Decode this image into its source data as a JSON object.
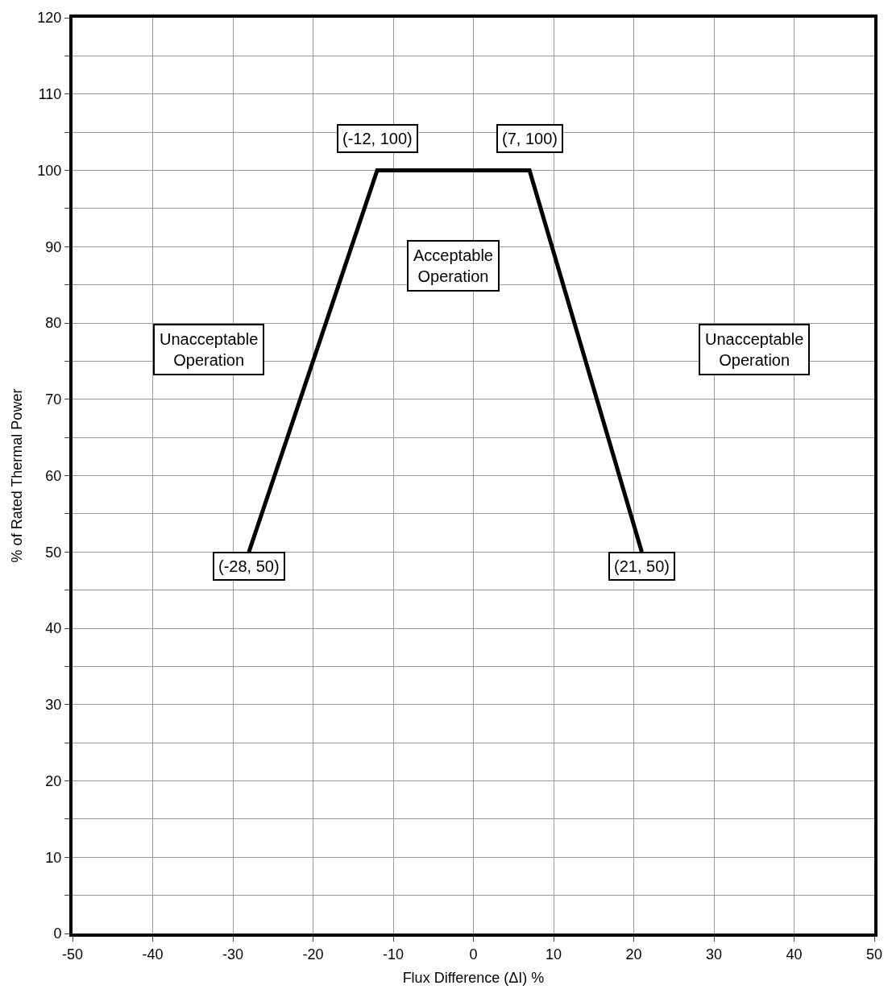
{
  "chart_data": {
    "type": "line",
    "xlabel": "Flux Difference (ΔI) %",
    "ylabel": "% of Rated Thermal Power",
    "series": [
      {
        "color": "#000000",
        "x": [
          -28,
          -12,
          7,
          21
        ],
        "values": [
          50,
          100,
          100,
          50
        ]
      }
    ],
    "xlim": [
      -50,
      50
    ],
    "xticks": [
      -50,
      -40,
      -30,
      -20,
      -10,
      0,
      10,
      20,
      30,
      40,
      50
    ],
    "ylim": [
      0,
      120
    ],
    "yticks": [
      0,
      {
        "value": 5,
        "label": null
      },
      10,
      {
        "value": 15,
        "label": null
      },
      20,
      {
        "value": 25,
        "label": null
      },
      30,
      {
        "value": 35,
        "label": null
      },
      40,
      {
        "value": 45,
        "label": null
      },
      50,
      {
        "value": 55,
        "label": null
      },
      60,
      {
        "value": 65,
        "label": null
      },
      70,
      {
        "value": 75,
        "label": null
      },
      80,
      {
        "value": 85,
        "label": null
      },
      90,
      {
        "value": 95,
        "label": null
      },
      100,
      {
        "value": 105,
        "label": null
      },
      110,
      {
        "value": 115,
        "label": null
      },
      120
    ],
    "grid": true,
    "marker": "none",
    "line_style": "solid",
    "annotations": [
      {
        "text": "(-12, 100)",
        "x": -12,
        "y": 100
      },
      {
        "text": "(7, 100)",
        "x": 7,
        "y": 100
      },
      {
        "text": "(-28, 50)",
        "x": -28,
        "y": 50
      },
      {
        "text": "(21, 50)",
        "x": 21,
        "y": 50
      },
      "Acceptable\nOperation",
      "Unacceptable\nOperation",
      "Unacceptable\nOperation"
    ]
  }
}
